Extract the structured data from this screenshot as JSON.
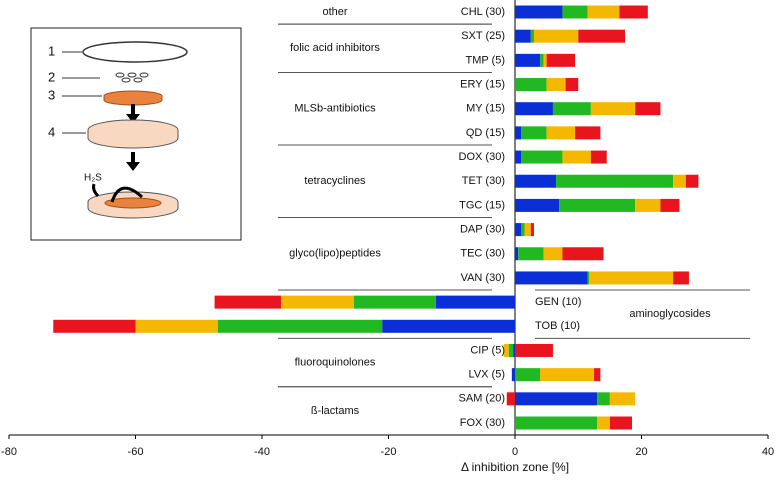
{
  "chart_data": {
    "type": "stacked-barh",
    "x_label": "Δ inhibition zone [%]",
    "xlim": [
      -80,
      40
    ],
    "xticks": [
      -80,
      -60,
      -40,
      -20,
      0,
      20,
      40
    ],
    "groups": [
      {
        "label": "other",
        "categories": [
          "CHL (30)"
        ]
      },
      {
        "label": "folic acid inhibitors",
        "categories": [
          "SXT (25)",
          "TMP (5)"
        ]
      },
      {
        "label": "MLSb-antibiotics",
        "categories": [
          "ERY (15)",
          "MY (15)",
          "QD (15)"
        ]
      },
      {
        "label": "tetracyclines",
        "categories": [
          "DOX (30)",
          "TET (30)",
          "TGC (15)"
        ]
      },
      {
        "label": "glyco(lipo)peptides",
        "categories": [
          "DAP (30)",
          "TEC (30)",
          "VAN (30)"
        ]
      },
      {
        "label": "aminoglycosides",
        "categories": [
          "GEN (10)",
          "TOB (10)"
        ],
        "label_side": "right"
      },
      {
        "label": "fluoroquinolones",
        "categories": [
          "CIP (5)",
          "LVX (5)"
        ]
      },
      {
        "label": "ß-lactams",
        "categories": [
          "SAM (20)",
          "FOX (30)"
        ]
      }
    ],
    "series": [
      {
        "color": "#0a2fd6",
        "values": [
          7.5,
          2.5,
          4,
          0,
          6,
          1,
          1,
          6.5,
          7,
          1,
          0.5,
          11.5,
          -12.5,
          -21,
          -0.3,
          -0.5,
          13,
          0
        ]
      },
      {
        "color": "#22b822",
        "values": [
          4,
          0.5,
          0.5,
          5,
          6,
          4,
          6.5,
          18.5,
          12,
          0.5,
          4,
          0.2,
          -13,
          -26,
          -0.7,
          4,
          2,
          13
        ]
      },
      {
        "color": "#f5b800",
        "values": [
          5,
          7,
          0.5,
          3,
          7,
          4.5,
          4.5,
          2,
          4,
          1,
          3,
          13.3,
          -11.5,
          -13,
          -0.8,
          8.5,
          4,
          2
        ]
      },
      {
        "color": "#e8141e",
        "values": [
          4.5,
          7.4,
          4.5,
          2,
          4,
          4,
          2.5,
          2,
          3,
          0.5,
          6.5,
          2.5,
          -10.5,
          -13,
          6,
          1,
          -1.3,
          3.5
        ]
      }
    ]
  },
  "inset": {
    "labels": [
      "1",
      "2",
      "3",
      "4"
    ],
    "gas": "H₂S"
  }
}
